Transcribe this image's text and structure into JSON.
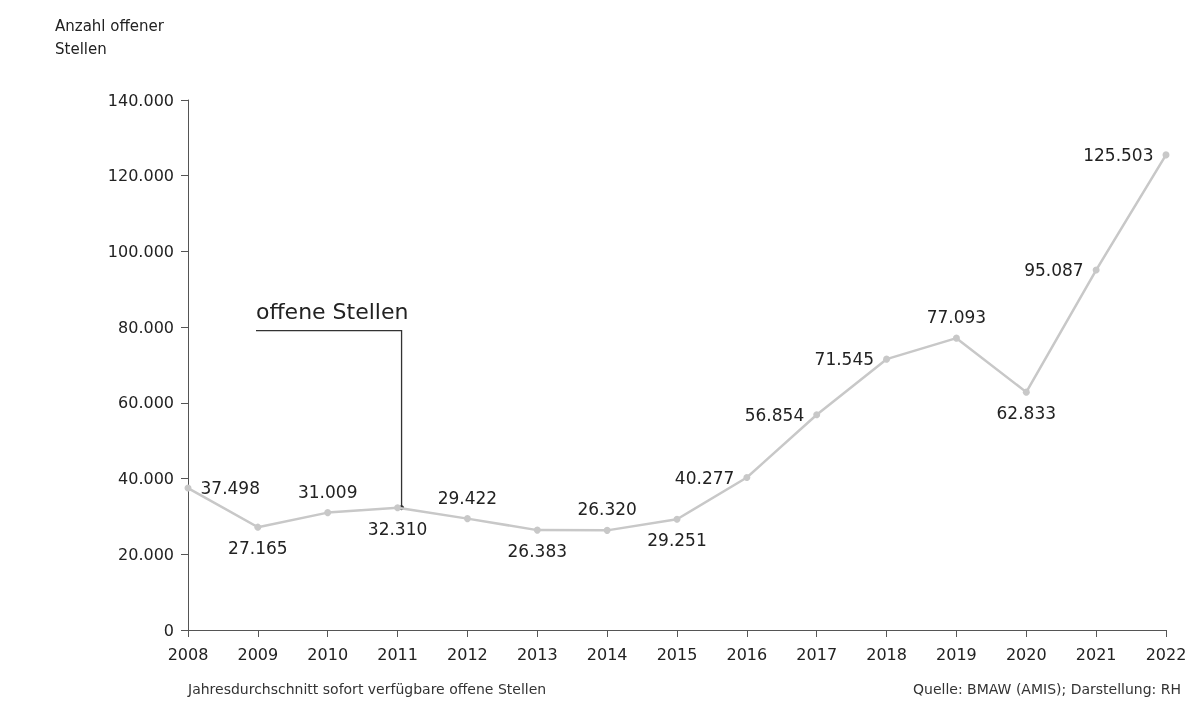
{
  "chart_data": {
    "type": "line",
    "categories": [
      "2008",
      "2009",
      "2010",
      "2011",
      "2012",
      "2013",
      "2014",
      "2015",
      "2016",
      "2017",
      "2018",
      "2019",
      "2020",
      "2021",
      "2022"
    ],
    "series": [
      {
        "name": "offene Stellen",
        "color": "#c8c8c8",
        "values": [
          37498,
          27165,
          31009,
          32310,
          29422,
          26383,
          26320,
          29251,
          40277,
          56854,
          71545,
          77093,
          62833,
          95087,
          125503
        ],
        "value_labels": [
          "37.498",
          "27.165",
          "31.009",
          "32.310",
          "29.422",
          "26.383",
          "26.320",
          "29.251",
          "40.277",
          "56.854",
          "71.545",
          "77.093",
          "62.833",
          "95.087",
          "125.503"
        ]
      }
    ],
    "ylabel": "Anzahl offener Stellen",
    "ylim": [
      0,
      140000
    ],
    "yticks": [
      0,
      {
        "value": 20000,
        "label": "20.000"
      },
      {
        "value": 40000,
        "label": "40.000"
      },
      {
        "value": 60000,
        "label": "60.000"
      },
      {
        "value": 80000,
        "label": "80.000"
      },
      {
        "value": 100000,
        "label": "100.000"
      },
      {
        "value": 120000,
        "label": "120.000"
      },
      {
        "value": 140000,
        "label": "140.000"
      }
    ],
    "grid": false,
    "legend": false,
    "marker": "circle",
    "line_style": "solid",
    "annotations": [
      "Jahresdurchschnitt sofort verfügbare offene Stellen",
      "Quelle: BMAW (AMIS); Darstellung: RH"
    ]
  }
}
